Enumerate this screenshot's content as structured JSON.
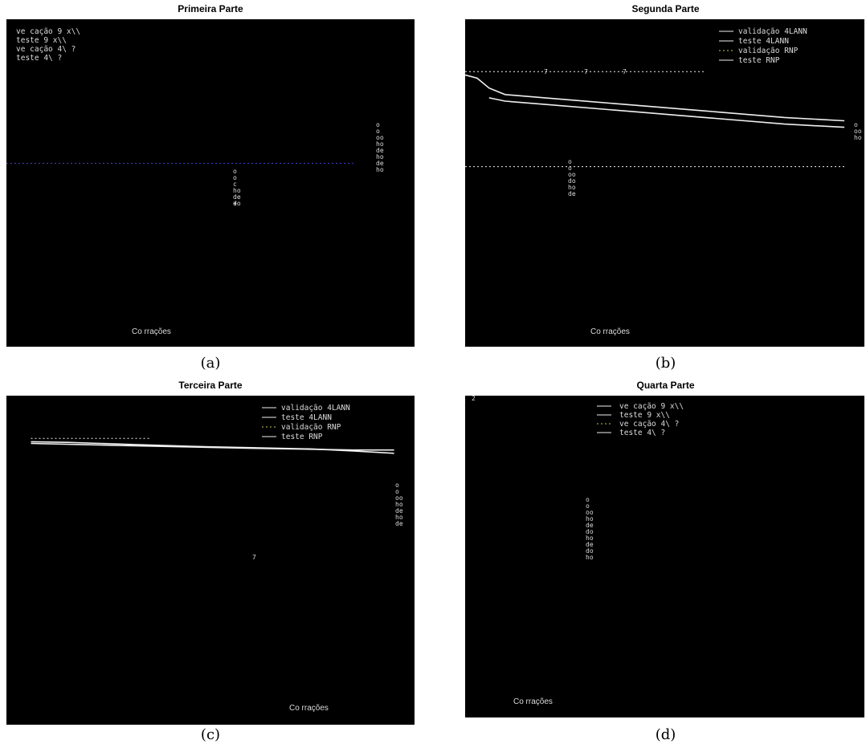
{
  "colors": {
    "background": "#000000",
    "page": "#ffffff",
    "text": "#dcdcdc",
    "red": "#d22020",
    "blue": "#3c3cc8",
    "yellow": "#c8c850",
    "white": "#f0f0f0"
  },
  "chart_data": [
    {
      "type": "line",
      "title": "Primeira Parte",
      "caption": "(a)",
      "xlabel": "Co rrações",
      "ylabel": "",
      "grid": false,
      "legend_position": "top-left",
      "legend": [
        "ve cação 9 x\\\\",
        "teste 9 x\\\\",
        "ve cação 4\\ ?",
        "teste 4\\ ?"
      ],
      "y_axis_text": [
        "o",
        "o",
        "c",
        "ho",
        "de",
        "do"
      ],
      "y_axis_text_right": [
        "o",
        "o",
        "oo",
        "ho",
        "de",
        "ho",
        "de",
        "ho"
      ],
      "tick_labels": [
        "+"
      ],
      "series": [
        {
          "color": "blue",
          "style": "dotted",
          "x": [
            0,
            0.3,
            0.6,
            0.85
          ],
          "y": [
            0.56,
            0.56,
            0.56,
            0.56
          ]
        }
      ]
    },
    {
      "type": "line",
      "title": "Segunda Parte",
      "caption": "(b)",
      "xlabel": "Co rrações",
      "ylabel": "",
      "grid": false,
      "legend_position": "top-right",
      "legend": [
        "validação 4LANN",
        "teste 4LANN",
        "validação RNP",
        "teste RNP"
      ],
      "tick_labels": [
        "7",
        "7",
        "7"
      ],
      "y_axis_text_right": [
        "o",
        "oo",
        "ho"
      ],
      "y_axis_text": [
        "o",
        "o",
        "oo",
        "do",
        "ho",
        "de"
      ],
      "series": [
        {
          "color": "white",
          "style": "solid",
          "x": [
            0,
            0.03,
            0.06,
            0.1,
            0.2,
            0.4,
            0.6,
            0.8,
            0.95
          ],
          "y": [
            0.83,
            0.82,
            0.79,
            0.77,
            0.76,
            0.74,
            0.72,
            0.7,
            0.69
          ]
        },
        {
          "color": "white",
          "style": "solid",
          "x": [
            0.06,
            0.1,
            0.2,
            0.4,
            0.6,
            0.8,
            0.95
          ],
          "y": [
            0.76,
            0.75,
            0.74,
            0.72,
            0.7,
            0.68,
            0.67
          ]
        },
        {
          "color": "white",
          "style": "dotted",
          "x": [
            0,
            0.25,
            0.5,
            0.75,
            0.95
          ],
          "y": [
            0.55,
            0.55,
            0.55,
            0.55,
            0.55
          ]
        },
        {
          "color": "white",
          "style": "dotted",
          "x": [
            0,
            0.2,
            0.4,
            0.6
          ],
          "y": [
            0.84,
            0.84,
            0.84,
            0.84
          ]
        }
      ]
    },
    {
      "type": "line",
      "title": "Terceira Parte",
      "caption": "(c)",
      "xlabel": "Co rrações",
      "ylabel": "",
      "grid": false,
      "legend_position": "top-right",
      "legend": [
        "validação 4LANN",
        "teste 4LANN",
        "validação RNP",
        "teste RNP"
      ],
      "y_axis_text_right": [
        "o",
        "o",
        "oo",
        "ho",
        "de",
        "ho",
        "de"
      ],
      "tick_labels": [
        "7"
      ],
      "series": [
        {
          "color": "white",
          "style": "solid",
          "x": [
            0.06,
            0.15,
            0.3,
            0.45,
            0.6,
            0.75,
            0.85,
            0.95
          ],
          "y": [
            0.86,
            0.858,
            0.852,
            0.846,
            0.842,
            0.838,
            0.832,
            0.825
          ]
        },
        {
          "color": "white",
          "style": "dotted",
          "x": [
            0.06,
            0.2,
            0.35
          ],
          "y": [
            0.87,
            0.87,
            0.87
          ]
        },
        {
          "color": "white",
          "style": "solid",
          "x": [
            0.06,
            0.3,
            0.6,
            0.85,
            0.95
          ],
          "y": [
            0.855,
            0.848,
            0.84,
            0.835,
            0.835
          ]
        }
      ]
    },
    {
      "type": "line",
      "title": "Quarta Parte",
      "caption": "(d)",
      "xlabel": "Co rrações",
      "ylabel": "",
      "grid": false,
      "legend_position": "top-center",
      "legend": [
        "ve cação 9 x\\\\",
        "teste 9 x\\\\",
        "ve cação 4\\ ?",
        "teste 4\\ ?"
      ],
      "y_axis_text": [
        "o",
        "o",
        "oo",
        "ho",
        "de",
        "do",
        "ho",
        "de",
        "do",
        "ho"
      ],
      "tick_labels": [
        "2"
      ],
      "series": []
    }
  ]
}
